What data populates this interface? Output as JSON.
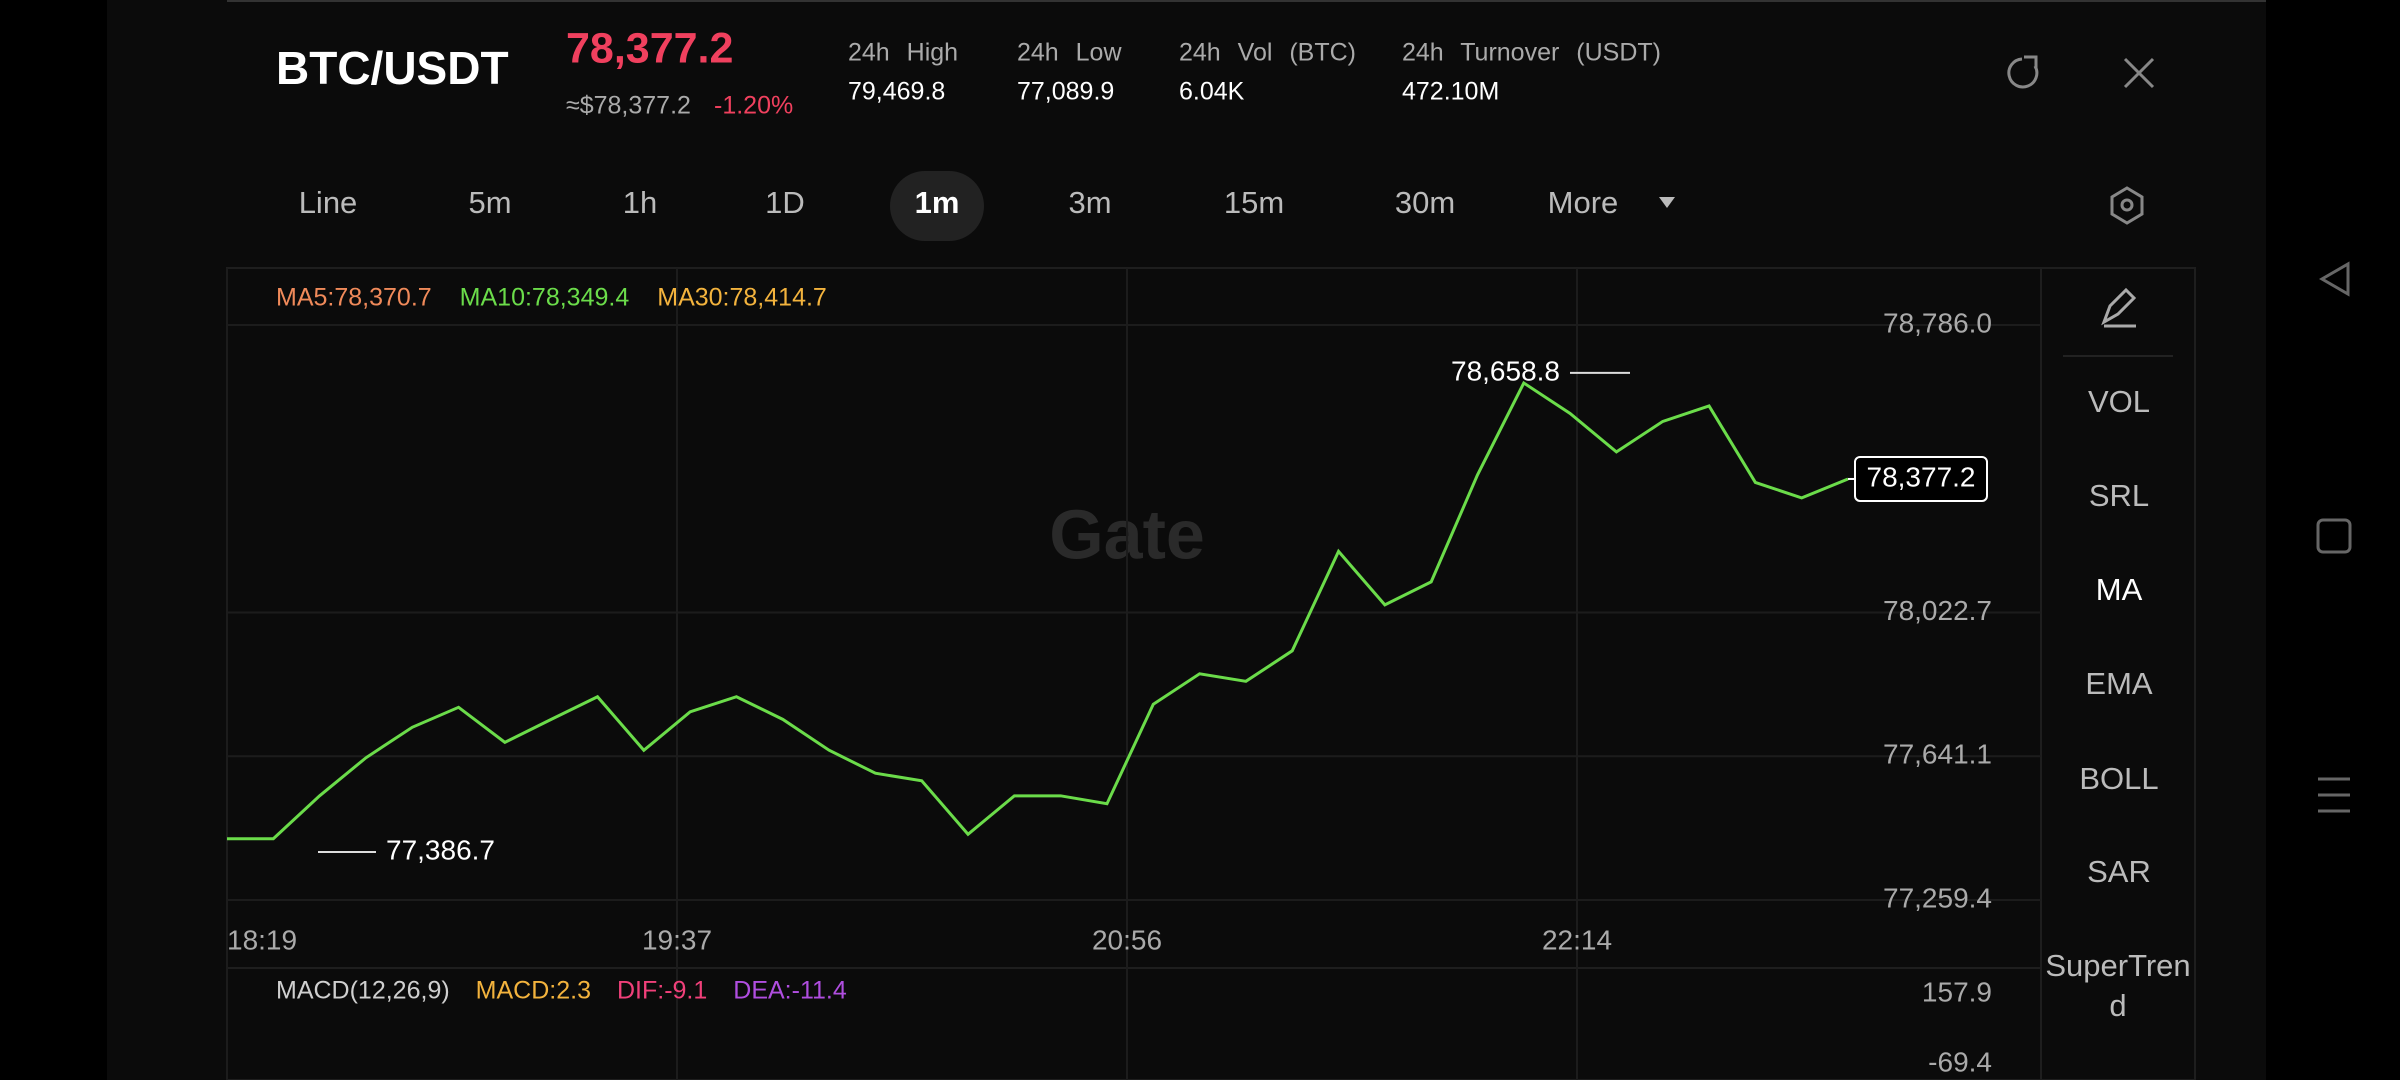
{
  "header": {
    "pair": "BTC/USDT",
    "price": "78,377.2",
    "approx": "≈$78,377.2",
    "change": "-1.20%",
    "stats": [
      {
        "label": "24h High",
        "value": "79,469.8"
      },
      {
        "label": "24h Low",
        "value": "77,089.9"
      },
      {
        "label": "24h Vol (BTC)",
        "value": "6.04K"
      },
      {
        "label": "24h Turnover (USDT)",
        "value": "472.10M"
      }
    ]
  },
  "tabs": [
    "Line",
    "5m",
    "1h",
    "1D",
    "1m",
    "3m",
    "15m",
    "30m",
    "More"
  ],
  "selected_tab": 4,
  "chart": {
    "watermark": "Gate",
    "ma_legend": [
      {
        "text": "MA5:78,370.7",
        "color": "#f08a5a"
      },
      {
        "text": "MA10:78,349.4",
        "color": "#6bdc4a"
      },
      {
        "text": "MA30:78,414.7",
        "color": "#f3b33d"
      }
    ],
    "ylim": [
      77259.4,
      78786.0
    ],
    "yticks": [
      {
        "value": 78786.0,
        "label": "78,786.0"
      },
      {
        "value": 78022.7,
        "label": "78,022.7"
      },
      {
        "value": 77641.1,
        "label": "77,641.1"
      },
      {
        "value": 77259.4,
        "label": "77,259.4"
      }
    ],
    "xticks": [
      "18:19",
      "19:37",
      "20:56",
      "22:14"
    ],
    "high": {
      "value": 78658.8,
      "label": "78,658.8"
    },
    "low": {
      "value": 77386.7,
      "label": "77,386.7"
    },
    "last": {
      "value": 78377.2,
      "label": "78,377.2"
    },
    "trace_color": "#6bdc4a",
    "price_trace": [
      77422,
      77422,
      77536,
      77637,
      77718,
      77771,
      77678,
      77739,
      77799,
      77657,
      77759,
      77799,
      77739,
      77657,
      77596,
      77576,
      77434,
      77536,
      77536,
      77515,
      77779,
      77860,
      77840,
      77921,
      78185,
      78043,
      78104,
      78388,
      78632,
      78551,
      78449,
      78530,
      78571,
      78368,
      78327,
      78377.2
    ]
  },
  "macd": {
    "legend": [
      {
        "text": "MACD(12,26,9)",
        "color": "#cfcfcf"
      },
      {
        "text": "MACD:2.3",
        "color": "#f3b33d"
      },
      {
        "text": "DIF:-9.1",
        "color": "#f0407a"
      },
      {
        "text": "DEA:-11.4",
        "color": "#b04ee0"
      }
    ],
    "yticks": [
      157.9,
      -69.4
    ]
  },
  "indicators": [
    "VOL",
    "SRL",
    "MA",
    "EMA",
    "BOLL",
    "SAR",
    "SuperTrend"
  ]
}
